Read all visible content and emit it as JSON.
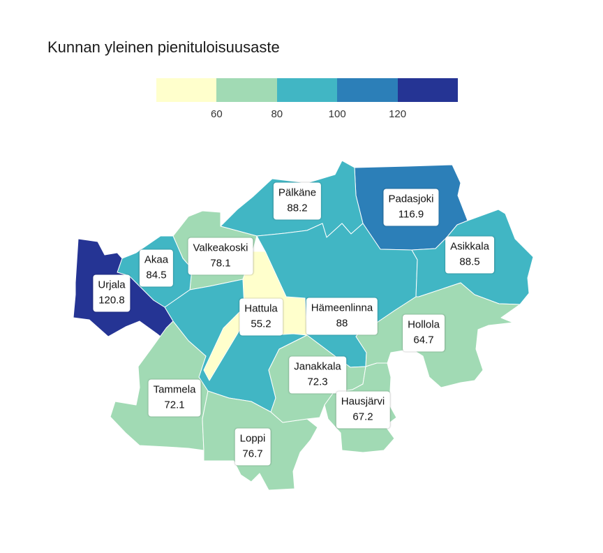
{
  "title": "Kunnan yleinen pienituloisuusaste",
  "legend": {
    "colors": [
      "#ffffcc",
      "#a1dab4",
      "#41b6c4",
      "#2c7fb8",
      "#253494"
    ],
    "ticks": [
      "60",
      "80",
      "100",
      "120"
    ]
  },
  "municipalities": [
    {
      "name": "Pälkäne",
      "value": "88.2",
      "class": 2
    },
    {
      "name": "Padasjoki",
      "value": "116.9",
      "class": 3
    },
    {
      "name": "Asikkala",
      "value": "88.5",
      "class": 2
    },
    {
      "name": "Valkeakoski",
      "value": "78.1",
      "class": 1
    },
    {
      "name": "Akaa",
      "value": "84.5",
      "class": 2
    },
    {
      "name": "Urjala",
      "value": "120.8",
      "class": 4
    },
    {
      "name": "Hattula",
      "value": "55.2",
      "class": 0
    },
    {
      "name": "Hämeenlinna",
      "value": "88",
      "class": 2
    },
    {
      "name": "Hollola",
      "value": "64.7",
      "class": 1
    },
    {
      "name": "Janakkala",
      "value": "72.3",
      "class": 1
    },
    {
      "name": "Hausjärvi",
      "value": "67.2",
      "class": 1
    },
    {
      "name": "Tammela",
      "value": "72.1",
      "class": 1
    },
    {
      "name": "Loppi",
      "value": "76.7",
      "class": 1
    }
  ]
}
